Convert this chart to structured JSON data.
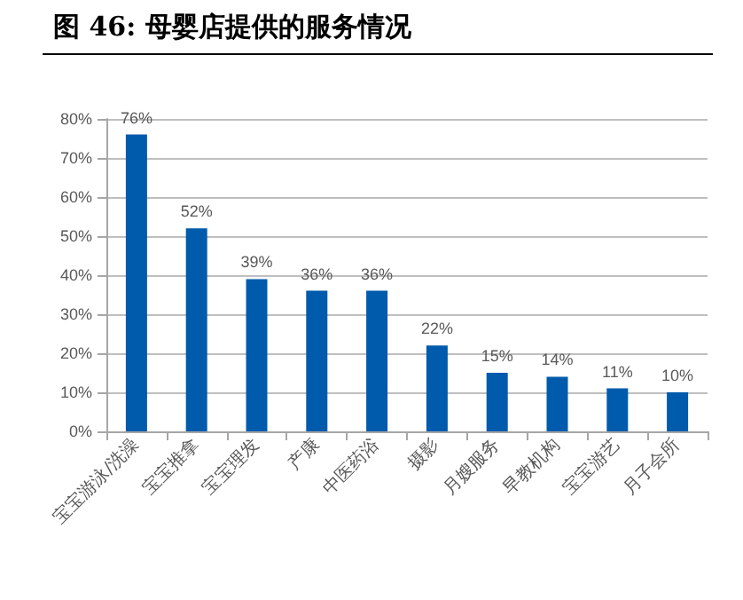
{
  "chart_data": {
    "type": "bar",
    "title": "图 46: 母婴店提供的服务情况",
    "categories": [
      "宝宝游泳/洗澡",
      "宝宝推拿",
      "宝宝理发",
      "产康",
      "中医药浴",
      "摄影",
      "月嫂服务",
      "早教机构",
      "宝宝游艺",
      "月子会所"
    ],
    "values": [
      76,
      52,
      39,
      36,
      36,
      22,
      15,
      14,
      11,
      10
    ],
    "value_labels": [
      "76%",
      "52%",
      "39%",
      "36%",
      "36%",
      "22%",
      "15%",
      "14%",
      "11%",
      "10%"
    ],
    "color": "#005bac",
    "ylim": [
      0,
      80
    ],
    "yticks": [
      {
        "value": 0,
        "label": "0%"
      },
      {
        "value": 10,
        "label": "10%"
      },
      {
        "value": 20,
        "label": "20%"
      },
      {
        "value": 30,
        "label": "30%"
      },
      {
        "value": 40,
        "label": "40%"
      },
      {
        "value": 50,
        "label": "50%"
      },
      {
        "value": 60,
        "label": "60%"
      },
      {
        "value": 70,
        "label": "70%"
      },
      {
        "value": 80,
        "label": "80%"
      }
    ],
    "grid": "y"
  }
}
